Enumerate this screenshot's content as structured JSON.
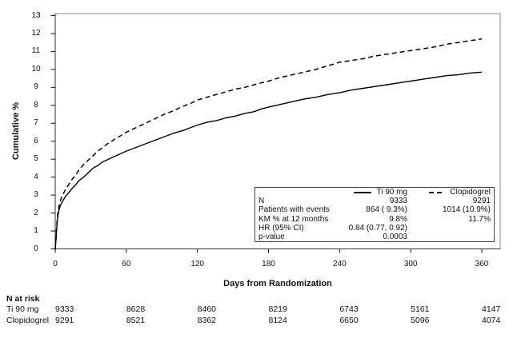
{
  "chart_data": {
    "type": "line",
    "title": "",
    "xlabel": "Days from Randomization",
    "ylabel": "Cumulative %",
    "xlim": [
      0,
      375
    ],
    "ylim": [
      0,
      13.1
    ],
    "x_ticks": [
      0,
      60,
      120,
      180,
      240,
      300,
      360
    ],
    "y_ticks": [
      0,
      1,
      2,
      3,
      4,
      5,
      6,
      7,
      8,
      9,
      10,
      11,
      12,
      13
    ],
    "grid": false,
    "legend_position": "inside-bottom-right",
    "series": [
      {
        "name": "Ti 90 mg",
        "line_style": "solid",
        "color": "#000000",
        "points": [
          [
            0,
            0
          ],
          [
            0.7,
            0.5
          ],
          [
            1,
            0.95
          ],
          [
            1.5,
            1.35
          ],
          [
            2,
            1.7
          ],
          [
            3,
            2.1
          ],
          [
            4,
            2.35
          ],
          [
            5,
            2.5
          ],
          [
            6,
            2.62
          ],
          [
            7,
            2.75
          ],
          [
            9,
            2.95
          ],
          [
            11,
            3.1
          ],
          [
            14,
            3.35
          ],
          [
            17,
            3.55
          ],
          [
            20,
            3.8
          ],
          [
            24,
            4.0
          ],
          [
            28,
            4.25
          ],
          [
            32,
            4.5
          ],
          [
            36,
            4.65
          ],
          [
            40,
            4.85
          ],
          [
            45,
            5.0
          ],
          [
            50,
            5.15
          ],
          [
            55,
            5.3
          ],
          [
            60,
            5.45
          ],
          [
            68,
            5.65
          ],
          [
            76,
            5.85
          ],
          [
            84,
            6.05
          ],
          [
            92,
            6.25
          ],
          [
            100,
            6.45
          ],
          [
            108,
            6.6
          ],
          [
            114,
            6.75
          ],
          [
            120,
            6.9
          ],
          [
            128,
            7.05
          ],
          [
            136,
            7.15
          ],
          [
            144,
            7.3
          ],
          [
            152,
            7.4
          ],
          [
            160,
            7.55
          ],
          [
            168,
            7.65
          ],
          [
            174,
            7.8
          ],
          [
            180,
            7.9
          ],
          [
            190,
            8.05
          ],
          [
            200,
            8.2
          ],
          [
            210,
            8.35
          ],
          [
            220,
            8.45
          ],
          [
            230,
            8.6
          ],
          [
            240,
            8.7
          ],
          [
            250,
            8.85
          ],
          [
            260,
            8.95
          ],
          [
            270,
            9.05
          ],
          [
            280,
            9.15
          ],
          [
            290,
            9.25
          ],
          [
            300,
            9.35
          ],
          [
            310,
            9.45
          ],
          [
            320,
            9.55
          ],
          [
            330,
            9.65
          ],
          [
            340,
            9.7
          ],
          [
            350,
            9.8
          ],
          [
            360,
            9.85
          ]
        ]
      },
      {
        "name": "Clopidogrel",
        "line_style": "dashed",
        "color": "#000000",
        "points": [
          [
            0,
            0
          ],
          [
            0.7,
            0.6
          ],
          [
            1,
            1.05
          ],
          [
            1.5,
            1.5
          ],
          [
            2,
            1.9
          ],
          [
            3,
            2.3
          ],
          [
            4,
            2.6
          ],
          [
            5,
            2.8
          ],
          [
            6,
            2.95
          ],
          [
            7,
            3.1
          ],
          [
            9,
            3.35
          ],
          [
            11,
            3.55
          ],
          [
            14,
            3.85
          ],
          [
            17,
            4.1
          ],
          [
            20,
            4.4
          ],
          [
            24,
            4.7
          ],
          [
            28,
            4.95
          ],
          [
            32,
            5.2
          ],
          [
            36,
            5.45
          ],
          [
            40,
            5.65
          ],
          [
            45,
            5.9
          ],
          [
            50,
            6.1
          ],
          [
            55,
            6.3
          ],
          [
            60,
            6.5
          ],
          [
            68,
            6.75
          ],
          [
            76,
            7.0
          ],
          [
            84,
            7.25
          ],
          [
            92,
            7.5
          ],
          [
            100,
            7.7
          ],
          [
            108,
            7.95
          ],
          [
            114,
            8.1
          ],
          [
            120,
            8.3
          ],
          [
            128,
            8.45
          ],
          [
            136,
            8.6
          ],
          [
            144,
            8.75
          ],
          [
            152,
            8.9
          ],
          [
            160,
            9.0
          ],
          [
            168,
            9.15
          ],
          [
            174,
            9.25
          ],
          [
            180,
            9.35
          ],
          [
            190,
            9.55
          ],
          [
            200,
            9.7
          ],
          [
            210,
            9.85
          ],
          [
            220,
            10.0
          ],
          [
            230,
            10.2
          ],
          [
            240,
            10.4
          ],
          [
            250,
            10.5
          ],
          [
            260,
            10.6
          ],
          [
            270,
            10.75
          ],
          [
            280,
            10.85
          ],
          [
            290,
            10.95
          ],
          [
            300,
            11.05
          ],
          [
            310,
            11.15
          ],
          [
            320,
            11.25
          ],
          [
            330,
            11.4
          ],
          [
            340,
            11.5
          ],
          [
            350,
            11.6
          ],
          [
            360,
            11.7
          ]
        ]
      }
    ],
    "stats_box": {
      "rows": [
        {
          "label": "N",
          "ti_90_mg": "9333",
          "clopidogrel": "9291"
        },
        {
          "label": "Patients with events",
          "ti_90_mg": "864 ( 9.3%)",
          "clopidogrel": "1014 (10.9%)"
        },
        {
          "label": "KM % at 12 months",
          "ti_90_mg": "9.8%",
          "clopidogrel": "11.7%"
        },
        {
          "label": "HR (95% CI)",
          "ti_90_mg": "0.84 (0.77, 0.92)",
          "clopidogrel": ""
        },
        {
          "label": "p-value",
          "ti_90_mg": "0.0003",
          "clopidogrel": ""
        }
      ]
    },
    "n_at_risk": {
      "title": "N at risk",
      "x": [
        0,
        60,
        120,
        180,
        240,
        300,
        360
      ],
      "rows": [
        {
          "label": "Ti 90 mg",
          "values": [
            "9333",
            "8628",
            "8460",
            "8219",
            "6743",
            "5161",
            "4147"
          ]
        },
        {
          "label": "Clopidogrel",
          "values": [
            "9291",
            "8521",
            "8362",
            "8124",
            "6650",
            "5096",
            "4074"
          ]
        }
      ]
    }
  },
  "colors": {
    "line": "#000000",
    "plot_border": "#8a8a8a",
    "axis": "#333333",
    "text": "#111111",
    "background": "#ffffff"
  }
}
